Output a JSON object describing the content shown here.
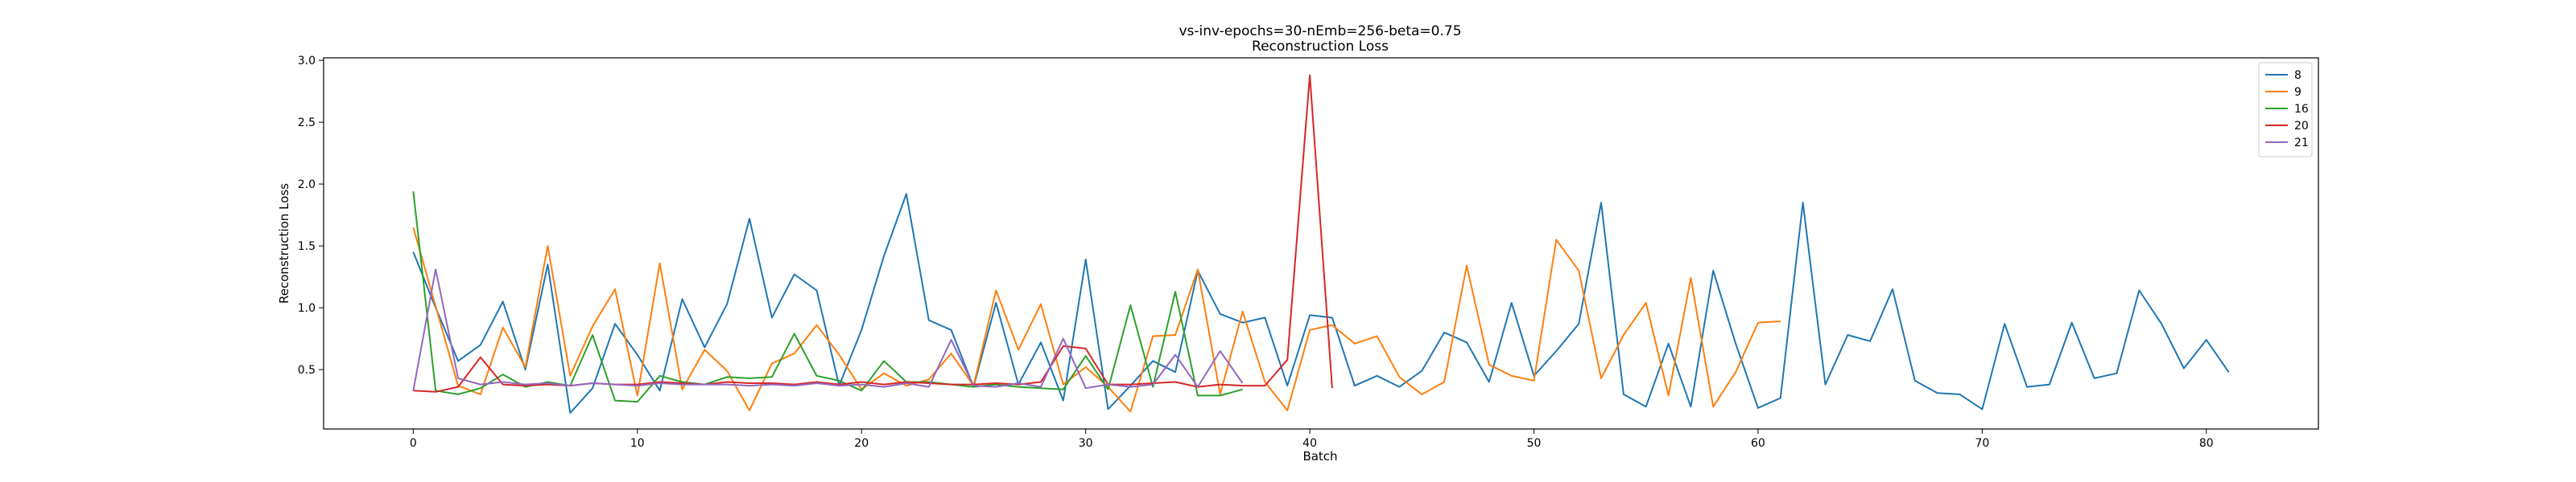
{
  "chart_data": {
    "type": "line",
    "title": "vs-inv-epochs=30-nEmb=256-beta=0.75",
    "subtitle": "Reconstruction Loss",
    "xlabel": "Batch",
    "ylabel": "Reconstruction Loss",
    "xlim": [
      -4,
      85
    ],
    "ylim": [
      0.02,
      3.02
    ],
    "xticks": [
      0,
      10,
      20,
      30,
      40,
      50,
      60,
      70,
      80
    ],
    "yticks": [
      0.5,
      1.0,
      1.5,
      2.0,
      2.5,
      3.0
    ],
    "ytick_labels": [
      "0.5",
      "1.0",
      "1.5",
      "2.0",
      "2.5",
      "3.0"
    ],
    "grid": false,
    "legend_position": "top-right",
    "series": [
      {
        "name": "8",
        "color": "#1f77b4",
        "values": [
          1.45,
          1.0,
          0.57,
          0.7,
          1.05,
          0.5,
          1.35,
          0.15,
          0.35,
          0.87,
          0.62,
          0.33,
          1.07,
          0.68,
          1.03,
          1.72,
          0.92,
          1.27,
          1.14,
          0.37,
          0.82,
          1.42,
          1.92,
          0.9,
          0.82,
          0.36,
          1.04,
          0.38,
          0.72,
          0.25,
          1.39,
          0.18,
          0.37,
          0.57,
          0.48,
          1.3,
          0.95,
          0.88,
          0.92,
          0.37,
          0.94,
          0.92,
          0.37,
          0.45,
          0.36,
          0.49,
          0.8,
          0.72,
          0.4,
          1.04,
          0.45,
          0.65,
          0.87,
          1.85,
          0.3,
          0.2,
          0.71,
          0.2,
          1.3,
          0.71,
          0.19,
          0.27,
          1.85,
          0.38,
          0.78,
          0.73,
          1.15,
          0.41,
          0.31,
          0.3,
          0.18,
          0.87,
          0.36,
          0.38,
          0.88,
          0.43,
          0.47,
          1.14,
          0.87,
          0.51,
          0.74,
          0.48
        ]
      },
      {
        "name": "9",
        "color": "#ff7f0e",
        "values": [
          1.65,
          1.01,
          0.37,
          0.3,
          0.84,
          0.52,
          1.5,
          0.45,
          0.85,
          1.15,
          0.29,
          1.36,
          0.34,
          0.66,
          0.49,
          0.17,
          0.55,
          0.63,
          0.86,
          0.62,
          0.34,
          0.47,
          0.37,
          0.42,
          0.63,
          0.37,
          1.14,
          0.66,
          1.03,
          0.38,
          0.52,
          0.36,
          0.16,
          0.77,
          0.78,
          1.31,
          0.3,
          0.97,
          0.4,
          0.17,
          0.82,
          0.86,
          0.71,
          0.77,
          0.44,
          0.3,
          0.4,
          1.34,
          0.54,
          0.45,
          0.41,
          1.55,
          1.3,
          0.43,
          0.78,
          1.04,
          0.29,
          1.24,
          0.2,
          0.48,
          0.88,
          0.89
        ]
      },
      {
        "name": "16",
        "color": "#2ca02c",
        "values": [
          1.94,
          0.33,
          0.3,
          0.35,
          0.46,
          0.36,
          0.4,
          0.37,
          0.78,
          0.25,
          0.24,
          0.45,
          0.4,
          0.38,
          0.44,
          0.43,
          0.44,
          0.79,
          0.45,
          0.41,
          0.33,
          0.57,
          0.4,
          0.4,
          0.38,
          0.36,
          0.38,
          0.36,
          0.35,
          0.34,
          0.61,
          0.34,
          1.02,
          0.36,
          1.13,
          0.29,
          0.29,
          0.34
        ]
      },
      {
        "name": "20",
        "color": "#d62728",
        "values": [
          0.33,
          0.32,
          0.36,
          0.6,
          0.38,
          0.37,
          0.38,
          0.37,
          0.39,
          0.38,
          0.38,
          0.4,
          0.39,
          0.38,
          0.4,
          0.39,
          0.39,
          0.38,
          0.4,
          0.38,
          0.4,
          0.38,
          0.4,
          0.39,
          0.38,
          0.38,
          0.39,
          0.38,
          0.4,
          0.69,
          0.67,
          0.38,
          0.38,
          0.39,
          0.4,
          0.36,
          0.38,
          0.37,
          0.37,
          0.58,
          2.88,
          0.35
        ]
      },
      {
        "name": "21",
        "color": "#9467bd",
        "values": [
          0.33,
          1.31,
          0.43,
          0.38,
          0.4,
          0.38,
          0.39,
          0.37,
          0.39,
          0.38,
          0.37,
          0.39,
          0.38,
          0.38,
          0.38,
          0.37,
          0.38,
          0.37,
          0.39,
          0.37,
          0.38,
          0.36,
          0.39,
          0.36,
          0.74,
          0.37,
          0.36,
          0.39,
          0.36,
          0.75,
          0.35,
          0.38,
          0.36,
          0.38,
          0.62,
          0.36,
          0.65,
          0.39
        ]
      }
    ]
  }
}
